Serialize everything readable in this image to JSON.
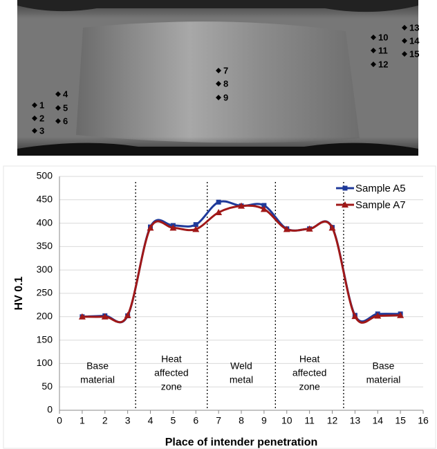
{
  "micrograph": {
    "points": [
      "1",
      "2",
      "3",
      "4",
      "5",
      "6",
      "7",
      "8",
      "9",
      "10",
      "11",
      "12",
      "13",
      "14",
      "15"
    ]
  },
  "chart_data": {
    "type": "line",
    "y_label": "HV 0.1",
    "x_label": "Place of intender penetration",
    "x": [
      1,
      2,
      3,
      4,
      5,
      6,
      7,
      8,
      9,
      10,
      11,
      12,
      13,
      14,
      15
    ],
    "series": [
      {
        "name": "Sample A5",
        "color": "#1f3a9a",
        "marker": "square",
        "values": [
          200,
          202,
          202,
          392,
          395,
          397,
          445,
          437,
          438,
          388,
          388,
          391,
          203,
          206,
          206
        ]
      },
      {
        "name": "Sample A7",
        "color": "#a01818",
        "marker": "triangle",
        "values": [
          200,
          200,
          203,
          390,
          390,
          387,
          423,
          437,
          430,
          387,
          388,
          390,
          201,
          202,
          203
        ]
      }
    ],
    "xlim": [
      0,
      16
    ],
    "xticks": [
      0,
      1,
      2,
      3,
      4,
      5,
      6,
      7,
      8,
      9,
      10,
      11,
      12,
      13,
      14,
      15,
      16
    ],
    "ylim": [
      0,
      500
    ],
    "yticks": [
      0,
      50,
      100,
      150,
      200,
      250,
      300,
      350,
      400,
      450,
      500
    ],
    "grid": true,
    "smooth": true,
    "legend": "top-right",
    "dividers": [
      3.35,
      6.5,
      9.5,
      12.5
    ],
    "regions": [
      [
        "Base",
        "material"
      ],
      [
        "Heat",
        "affected",
        "zone"
      ],
      [
        "Weld",
        "metal"
      ],
      [
        "Heat",
        "affected",
        "zone"
      ],
      [
        "Base",
        "material"
      ]
    ]
  }
}
